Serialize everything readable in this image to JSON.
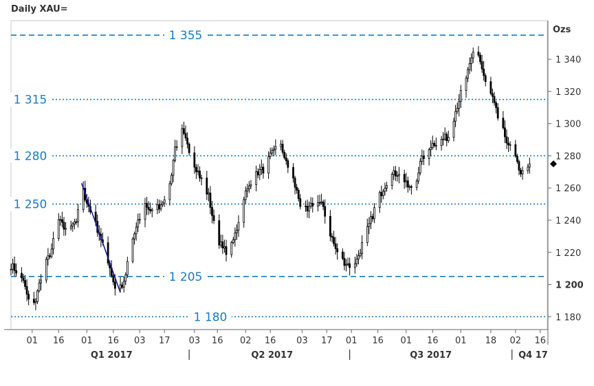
{
  "chart_data": {
    "type": "candlestick",
    "title": "Daily XAU=",
    "units_label": "Ozs",
    "ylim": [
      1172,
      1364
    ],
    "xlim": [
      "2016-12-20",
      "2017-10-20"
    ],
    "yticks": [
      1180,
      1200,
      1220,
      1240,
      1260,
      1280,
      1300,
      1320,
      1340
    ],
    "ytick_labels": [
      "1 180",
      "1 200",
      "1 220",
      "1 240",
      "1 260",
      "1 280",
      "1 300",
      "1 320",
      "1 340"
    ],
    "bold_ytick": 1200,
    "xticks": [
      {
        "date": "2017-01-01",
        "label": "01"
      },
      {
        "date": "2017-01-16",
        "label": "16"
      },
      {
        "date": "2017-02-01",
        "label": "01"
      },
      {
        "date": "2017-02-16",
        "label": "16"
      },
      {
        "date": "2017-03-03",
        "label": "03"
      },
      {
        "date": "2017-03-17",
        "label": "17"
      },
      {
        "date": "2017-04-03",
        "label": "03"
      },
      {
        "date": "2017-04-16",
        "label": "16"
      },
      {
        "date": "2017-05-02",
        "label": "02"
      },
      {
        "date": "2017-05-16",
        "label": "16"
      },
      {
        "date": "2017-06-03",
        "label": "03"
      },
      {
        "date": "2017-06-17",
        "label": "17"
      },
      {
        "date": "2017-07-01",
        "label": "01"
      },
      {
        "date": "2017-07-16",
        "label": "16"
      },
      {
        "date": "2017-08-01",
        "label": "01"
      },
      {
        "date": "2017-08-16",
        "label": "16"
      },
      {
        "date": "2017-09-01",
        "label": "01"
      },
      {
        "date": "2017-09-18",
        "label": "18"
      },
      {
        "date": "2017-10-02",
        "label": "02"
      },
      {
        "date": "2017-10-16",
        "label": "16"
      }
    ],
    "quarters": [
      {
        "label": "Q1 2017",
        "center": "2017-02-15"
      },
      {
        "label": "Q2 2017",
        "center": "2017-05-17"
      },
      {
        "label": "Q3 2017",
        "center": "2017-08-15"
      },
      {
        "label": "Q4 17",
        "center": "2017-10-12"
      }
    ],
    "quarter_separators": [
      "2017-03-31",
      "2017-06-30",
      "2017-09-30"
    ],
    "levels": [
      {
        "value": 1355,
        "label": "1 355",
        "style": "dashed",
        "label_pos": "center-left"
      },
      {
        "value": 1315,
        "label": "1 315",
        "style": "dotted",
        "label_pos": "left"
      },
      {
        "value": 1280,
        "label": "1 280",
        "style": "dotted",
        "label_pos": "left"
      },
      {
        "value": 1250,
        "label": "1 250",
        "style": "dotted",
        "label_pos": "left"
      },
      {
        "value": 1205,
        "label": "1 205",
        "style": "dashed",
        "label_pos": "center-left"
      },
      {
        "value": 1180,
        "label": "1 180",
        "style": "dotted",
        "label_pos": "center-left"
      }
    ],
    "trendline": {
      "from": {
        "date": "2017-01-29",
        "value": 1263
      },
      "to": {
        "date": "2017-02-20",
        "value": 1195
      }
    },
    "last_value": 1275,
    "anchors": [
      [
        "2016-12-20",
        1212
      ],
      [
        "2016-12-26",
        1205
      ],
      [
        "2016-12-30",
        1190
      ],
      [
        "2017-01-03",
        1190
      ],
      [
        "2017-01-06",
        1205
      ],
      [
        "2017-01-12",
        1222
      ],
      [
        "2017-01-16",
        1240
      ],
      [
        "2017-01-19",
        1235
      ],
      [
        "2017-01-23",
        1238
      ],
      [
        "2017-01-26",
        1240
      ],
      [
        "2017-01-30",
        1258
      ],
      [
        "2017-02-03",
        1245
      ],
      [
        "2017-02-08",
        1232
      ],
      [
        "2017-02-13",
        1215
      ],
      [
        "2017-02-17",
        1198
      ],
      [
        "2017-02-22",
        1200
      ],
      [
        "2017-02-26",
        1225
      ],
      [
        "2017-03-02",
        1238
      ],
      [
        "2017-03-06",
        1250
      ],
      [
        "2017-03-10",
        1245
      ],
      [
        "2017-03-15",
        1250
      ],
      [
        "2017-03-20",
        1262
      ],
      [
        "2017-03-23",
        1285
      ],
      [
        "2017-03-27",
        1295
      ],
      [
        "2017-03-31",
        1283
      ],
      [
        "2017-04-03",
        1275
      ],
      [
        "2017-04-07",
        1265
      ],
      [
        "2017-04-11",
        1255
      ],
      [
        "2017-04-15",
        1232
      ],
      [
        "2017-04-19",
        1222
      ],
      [
        "2017-04-23",
        1220
      ],
      [
        "2017-04-27",
        1235
      ],
      [
        "2017-05-01",
        1255
      ],
      [
        "2017-05-05",
        1262
      ],
      [
        "2017-05-09",
        1270
      ],
      [
        "2017-05-13",
        1272
      ],
      [
        "2017-05-17",
        1282
      ],
      [
        "2017-05-21",
        1292
      ],
      [
        "2017-05-25",
        1275
      ],
      [
        "2017-05-29",
        1265
      ],
      [
        "2017-06-02",
        1250
      ],
      [
        "2017-06-06",
        1245
      ],
      [
        "2017-06-10",
        1252
      ],
      [
        "2017-06-14",
        1250
      ],
      [
        "2017-06-18",
        1235
      ],
      [
        "2017-06-22",
        1222
      ],
      [
        "2017-06-26",
        1215
      ],
      [
        "2017-06-30",
        1212
      ],
      [
        "2017-07-04",
        1215
      ],
      [
        "2017-07-08",
        1228
      ],
      [
        "2017-07-12",
        1240
      ],
      [
        "2017-07-16",
        1253
      ],
      [
        "2017-07-20",
        1262
      ],
      [
        "2017-07-24",
        1268
      ],
      [
        "2017-07-28",
        1270
      ],
      [
        "2017-08-01",
        1262
      ],
      [
        "2017-08-05",
        1258
      ],
      [
        "2017-08-09",
        1275
      ],
      [
        "2017-08-13",
        1285
      ],
      [
        "2017-08-17",
        1288
      ],
      [
        "2017-08-21",
        1290
      ],
      [
        "2017-08-25",
        1292
      ],
      [
        "2017-08-29",
        1308
      ],
      [
        "2017-09-02",
        1322
      ],
      [
        "2017-09-06",
        1335
      ],
      [
        "2017-09-09",
        1348
      ],
      [
        "2017-09-11",
        1343
      ],
      [
        "2017-09-15",
        1325
      ],
      [
        "2017-09-19",
        1315
      ],
      [
        "2017-09-23",
        1300
      ],
      [
        "2017-09-27",
        1290
      ],
      [
        "2017-10-01",
        1280
      ],
      [
        "2017-10-05",
        1270
      ],
      [
        "2017-10-08",
        1268
      ],
      [
        "2017-10-10",
        1275
      ]
    ]
  }
}
